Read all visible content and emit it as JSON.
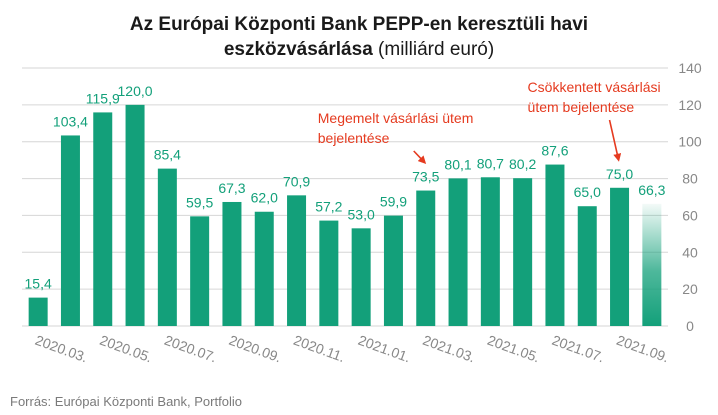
{
  "header": {
    "title_line1": "Az Európai Központi Bank PEPP-en keresztüli havi",
    "title_line2_bold": "eszközvásárlása",
    "title_line2_unit": "(milliárd euró)"
  },
  "source": "Forrás: Európai Központi Bank, Portfolio",
  "colors": {
    "bar": "#13a07a",
    "label": "#13a07a",
    "annotation": "#e53a1f",
    "axis_text": "#888888",
    "grid": "#d6d6d6"
  },
  "chart_data": {
    "type": "bar",
    "title": "Az Európai Központi Bank PEPP-en keresztüli havi eszközvásárlása (milliárd euró)",
    "categories": [
      "2020.03.",
      "2020.04.",
      "2020.05.",
      "2020.06.",
      "2020.07.",
      "2020.08.",
      "2020.09.",
      "2020.10.",
      "2020.11.",
      "2020.12.",
      "2021.01.",
      "2021.02.",
      "2021.03.",
      "2021.04.",
      "2021.05.",
      "2021.06.",
      "2021.07.",
      "2021.08.",
      "2021.09.",
      "2021.10."
    ],
    "values": [
      15.4,
      103.4,
      115.9,
      120.0,
      85.4,
      59.5,
      67.3,
      62.0,
      70.9,
      57.2,
      53.0,
      59.9,
      73.5,
      80.1,
      80.7,
      80.2,
      87.6,
      65.0,
      75.0,
      66.3
    ],
    "value_labels": [
      "15,4",
      "103,4",
      "115,9",
      "120,0",
      "85,4",
      "59,5",
      "67,3",
      "62,0",
      "70,9",
      "57,2",
      "53,0",
      "59,9",
      "73,5",
      "80,1",
      "80,7",
      "80,2",
      "87,6",
      "65,0",
      "75,0",
      "66,3"
    ],
    "x_tick_labels": [
      "2020.03.",
      "2020.05.",
      "2020.07.",
      "2020.09.",
      "2020.11.",
      "2021.01.",
      "2021.03.",
      "2021.05.",
      "2021.07.",
      "2021.09."
    ],
    "x_tick_every": 2,
    "y_ticks": [
      "0",
      "20",
      "40",
      "60",
      "80",
      "100",
      "120",
      "140"
    ],
    "ylim": [
      0,
      140
    ],
    "y_axis_side": "right",
    "grid": true,
    "last_bar_style": "gradient-fade",
    "annotations": [
      {
        "lines": [
          "Megemelt vásárlási ütem",
          "bejelentése"
        ],
        "target_index": 12
      },
      {
        "lines": [
          "Csökkentett vásárlási",
          "ütem bejelentése"
        ],
        "target_index": 18
      }
    ]
  }
}
